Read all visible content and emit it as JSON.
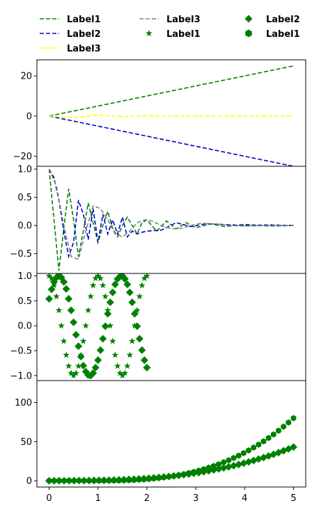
{
  "legend": {
    "placement": "top",
    "columns": 3,
    "entries": [
      {
        "label": "Label1",
        "color": "#008000",
        "style": "dashed"
      },
      {
        "label": "Label2",
        "color": "#0000cc",
        "style": "dashed"
      },
      {
        "label": "Label3",
        "color": "#ffff00",
        "style": "dashed"
      },
      {
        "label": "Label3",
        "color": "#808080",
        "style": "dashed"
      },
      {
        "label": "Label1",
        "color": "#008000",
        "style": "marker",
        "marker": "star"
      },
      {
        "label": "Label2",
        "color": "#008000",
        "style": "marker",
        "marker": "diamond"
      },
      {
        "label": "Label1",
        "color": "#008000",
        "style": "marker",
        "marker": "hexagon"
      }
    ]
  },
  "chart_data": [
    {
      "type": "line",
      "xlim": [
        -0.25,
        5.25
      ],
      "ylim": [
        -25,
        28
      ],
      "yticks": [
        -20,
        0,
        20
      ],
      "yticklabels": [
        "−20",
        "0",
        "20"
      ],
      "xticks": [],
      "grid": false,
      "series": [
        {
          "name": "Label1",
          "color": "#008000",
          "dash": "dashed",
          "x": [
            0,
            1,
            2,
            3,
            4,
            5
          ],
          "y": [
            0,
            5,
            10,
            15,
            20,
            25
          ]
        },
        {
          "name": "Label2",
          "color": "#0000cc",
          "dash": "dashed",
          "x": [
            0,
            1,
            2,
            3,
            4,
            5
          ],
          "y": [
            0,
            -5,
            -10,
            -15,
            -20,
            -25
          ]
        },
        {
          "name": "Label3",
          "color": "#ffff00",
          "dash": "dashed",
          "x": [
            0,
            0.5,
            1,
            1.5,
            2,
            2.5,
            3,
            3.5,
            4,
            4.5,
            5
          ],
          "y": [
            0,
            -0.8,
            0.6,
            -0.3,
            0.2,
            -0.1,
            0.1,
            0,
            0,
            0,
            0
          ]
        }
      ]
    },
    {
      "type": "line",
      "xlim": [
        -0.25,
        5.25
      ],
      "ylim": [
        -0.85,
        1.05
      ],
      "yticks": [
        -0.5,
        0,
        0.5,
        1
      ],
      "yticklabels": [
        "−0.5",
        "0.0",
        "0.5",
        "1.0"
      ],
      "xticks": [],
      "grid": false,
      "series": [
        {
          "name": "Label1",
          "color": "#008000",
          "dash": "dashed",
          "x": [
            0,
            0.1,
            0.2,
            0.3,
            0.4,
            0.5,
            0.6,
            0.7,
            0.8,
            0.9,
            1.0,
            1.1,
            1.2,
            1.3,
            1.4,
            1.5,
            1.6,
            1.7,
            1.8,
            1.9,
            2.0,
            2.2,
            2.4,
            2.6,
            2.8,
            3.0,
            3.3,
            3.6,
            4.0,
            4.5,
            5.0
          ],
          "y": [
            1.0,
            0.1,
            -0.8,
            -0.05,
            0.65,
            0.1,
            -0.55,
            -0.1,
            0.4,
            0.05,
            -0.3,
            0.0,
            0.25,
            -0.05,
            -0.2,
            0.0,
            0.15,
            0.0,
            -0.15,
            0.05,
            0.1,
            -0.1,
            0.08,
            -0.06,
            0.05,
            -0.04,
            0.03,
            -0.02,
            0.02,
            -0.01,
            0.0
          ]
        },
        {
          "name": "Label2",
          "color": "#0000cc",
          "dash": "dashed",
          "x": [
            0,
            0.1,
            0.2,
            0.3,
            0.4,
            0.5,
            0.6,
            0.7,
            0.8,
            0.9,
            1.0,
            1.1,
            1.2,
            1.3,
            1.4,
            1.5,
            1.6,
            1.7,
            1.8,
            1.9,
            2.0,
            2.3,
            2.6,
            2.9,
            3.2,
            3.5,
            4.0,
            4.5,
            5.0
          ],
          "y": [
            1.0,
            0.85,
            0.45,
            -0.1,
            -0.55,
            -0.3,
            0.45,
            0.2,
            -0.25,
            0.3,
            -0.3,
            0.2,
            -0.15,
            0.1,
            -0.15,
            0.15,
            -0.2,
            -0.1,
            -0.15,
            -0.12,
            -0.1,
            -0.08,
            0.05,
            -0.02,
            0.03,
            0.02,
            0.0,
            0.01,
            0.0
          ]
        },
        {
          "name": "Label3",
          "color": "#808080",
          "dash": "dashed",
          "x": [
            0,
            0.15,
            0.3,
            0.45,
            0.6,
            0.75,
            0.9,
            1.05,
            1.2,
            1.35,
            1.5,
            1.65,
            1.8,
            1.95,
            2.1,
            2.3,
            2.5,
            2.7,
            2.9,
            3.1,
            3.4,
            3.7,
            4.0,
            4.5,
            5.0
          ],
          "y": [
            1.0,
            0.7,
            0.0,
            -0.55,
            -0.6,
            -0.1,
            0.35,
            0.3,
            0.1,
            -0.15,
            -0.2,
            -0.1,
            0.05,
            0.1,
            0.08,
            0.0,
            -0.06,
            -0.05,
            0.0,
            0.04,
            0.03,
            0.0,
            -0.01,
            0.0,
            0.0
          ]
        }
      ]
    },
    {
      "type": "scatter",
      "xlim": [
        -0.25,
        5.25
      ],
      "ylim": [
        -1.1,
        1.05
      ],
      "yticks": [
        -1,
        -0.5,
        0,
        0.5,
        1
      ],
      "yticklabels": [
        "−1.0",
        "−0.5",
        "0.0",
        "0.5",
        "1.0"
      ],
      "xticks": [],
      "grid": false,
      "series": [
        {
          "name": "Label1",
          "color": "#008000",
          "marker": "star",
          "x": [
            0.0,
            0.05,
            0.1,
            0.15,
            0.2,
            0.25,
            0.3,
            0.35,
            0.4,
            0.45,
            0.5,
            0.55,
            0.6,
            0.65,
            0.7,
            0.75,
            0.8,
            0.85,
            0.9,
            0.95,
            1.0,
            1.05,
            1.1,
            1.15,
            1.2,
            1.25,
            1.3,
            1.35,
            1.4,
            1.45,
            1.5,
            1.55,
            1.6,
            1.65,
            1.7,
            1.75,
            1.8,
            1.85,
            1.9,
            1.95,
            2.0
          ],
          "y": [
            1.0,
            0.951,
            0.809,
            0.588,
            0.309,
            0.0,
            -0.309,
            -0.588,
            -0.809,
            -0.951,
            -1.0,
            -0.951,
            -0.809,
            -0.588,
            -0.309,
            0.0,
            0.309,
            0.588,
            0.809,
            0.951,
            1.0,
            0.951,
            0.809,
            0.588,
            0.309,
            0.0,
            -0.309,
            -0.588,
            -0.809,
            -0.951,
            -1.0,
            -0.951,
            -0.809,
            -0.588,
            -0.309,
            0.0,
            0.309,
            0.588,
            0.809,
            0.951,
            1.0
          ]
        },
        {
          "name": "Label2",
          "color": "#008000",
          "marker": "diamond",
          "x": [
            0.0,
            0.05,
            0.1,
            0.15,
            0.2,
            0.25,
            0.3,
            0.35,
            0.4,
            0.45,
            0.5,
            0.55,
            0.6,
            0.65,
            0.7,
            0.75,
            0.8,
            0.85,
            0.9,
            0.95,
            1.0,
            1.05,
            1.1,
            1.15,
            1.2,
            1.25,
            1.3,
            1.35,
            1.4,
            1.45,
            1.5,
            1.55,
            1.6,
            1.65,
            1.7,
            1.75,
            1.8,
            1.85,
            1.9,
            1.95,
            2.0
          ],
          "y": [
            0.54,
            0.73,
            0.88,
            0.97,
            1.0,
            0.97,
            0.88,
            0.74,
            0.54,
            0.31,
            0.07,
            -0.18,
            -0.41,
            -0.62,
            -0.8,
            -0.92,
            -0.99,
            -1.0,
            -0.95,
            -0.84,
            -0.69,
            -0.49,
            -0.26,
            -0.01,
            0.24,
            0.47,
            0.67,
            0.83,
            0.94,
            0.99,
            1.0,
            0.94,
            0.83,
            0.67,
            0.47,
            0.24,
            -0.01,
            -0.26,
            -0.49,
            -0.69,
            -0.84
          ]
        }
      ]
    },
    {
      "type": "scatter",
      "xlim": [
        -0.25,
        5.25
      ],
      "ylim": [
        -8,
        128
      ],
      "yticks": [
        0,
        50,
        100
      ],
      "yticklabels": [
        "0",
        "50",
        "100"
      ],
      "xticks": [
        0,
        1,
        2,
        3,
        4,
        5
      ],
      "xticklabels": [
        "0",
        "1",
        "2",
        "3",
        "4",
        "5"
      ],
      "grid": false,
      "series": [
        {
          "name": "Label1",
          "color": "#008000",
          "marker": "hexagon",
          "fn": "x^3 - 2x^2 + x",
          "x_range": [
            0,
            5
          ],
          "n": 50
        },
        {
          "name": "Label2",
          "color": "#008000",
          "marker": "diamond",
          "fn": "x^2.6 - x^2 + 0.5x",
          "x_range": [
            0,
            5
          ],
          "n": 50
        }
      ]
    }
  ]
}
